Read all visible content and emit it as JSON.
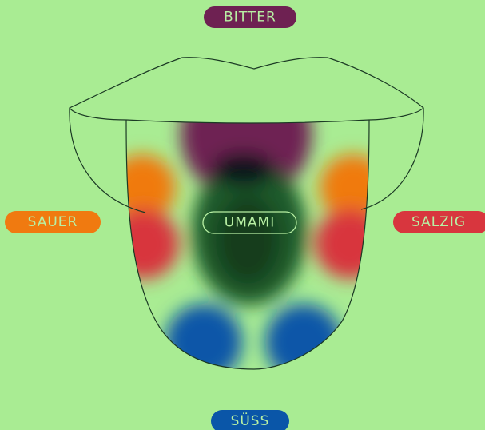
{
  "tastes": [
    {
      "label": "BITTER"
    },
    {
      "label": "SAUER"
    },
    {
      "label": "UMAMI"
    },
    {
      "label": "SALZIG"
    },
    {
      "label": "SÜSS"
    }
  ]
}
